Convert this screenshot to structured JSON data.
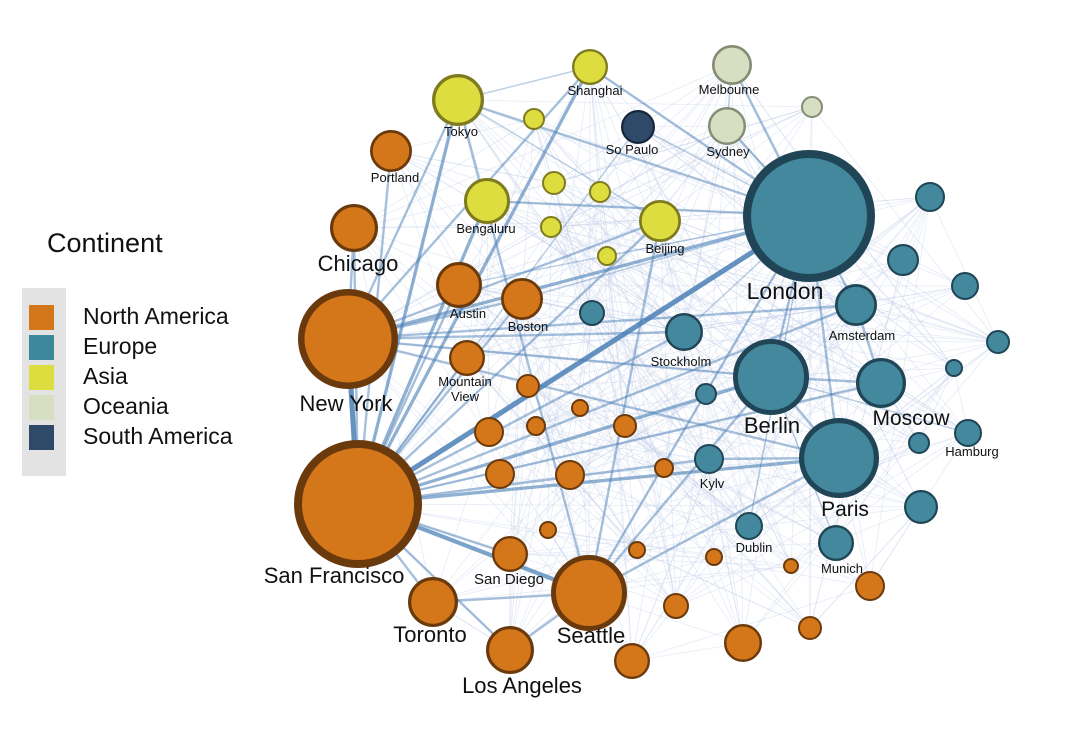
{
  "legend": {
    "title": "Continent",
    "items": [
      {
        "label": "North America",
        "color": "#d4761a"
      },
      {
        "label": "Europe",
        "color": "#3e889c"
      },
      {
        "label": "Asia",
        "color": "#dedd3f"
      },
      {
        "label": "Oceania",
        "color": "#d7dfc2"
      },
      {
        "label": "South America",
        "color": "#2f4a68"
      }
    ]
  },
  "styles": {
    "North America": {
      "fill": "#d4761a",
      "stroke": "#6b3a0c"
    },
    "Europe": {
      "fill": "#43889d",
      "stroke": "#1f4556"
    },
    "Asia": {
      "fill": "#dedd3f",
      "stroke": "#7e7b1e"
    },
    "Oceania": {
      "fill": "#d7dfc2",
      "stroke": "#858b75"
    },
    "South America": {
      "fill": "#2f4a68",
      "stroke": "#16263a"
    },
    "edge_color": "#4a7fb5"
  },
  "nodes": [
    {
      "id": "london",
      "label": "London",
      "continent": "Europe"
    },
    {
      "id": "berlin",
      "label": "Berlin",
      "continent": "Europe"
    },
    {
      "id": "paris",
      "label": "Paris",
      "continent": "Europe"
    },
    {
      "id": "moscow",
      "label": "Moscow",
      "continent": "Europe"
    },
    {
      "id": "amsterdam",
      "label": "Amsterdam",
      "continent": "Europe"
    },
    {
      "id": "stockholm",
      "label": "Stockholm",
      "continent": "Europe"
    },
    {
      "id": "hamburg",
      "label": "Hamburg",
      "continent": "Europe"
    },
    {
      "id": "kylv",
      "label": "Kylv",
      "continent": "Europe"
    },
    {
      "id": "dublin",
      "label": "Dublin",
      "continent": "Europe"
    },
    {
      "id": "munich",
      "label": "Munich",
      "continent": "Europe"
    },
    {
      "id": "eu1",
      "label": "",
      "continent": "Europe"
    },
    {
      "id": "eu2",
      "label": "",
      "continent": "Europe"
    },
    {
      "id": "eu3",
      "label": "",
      "continent": "Europe"
    },
    {
      "id": "eu4",
      "label": "",
      "continent": "Europe"
    },
    {
      "id": "eu5",
      "label": "",
      "continent": "Europe"
    },
    {
      "id": "eu6",
      "label": "",
      "continent": "Europe"
    },
    {
      "id": "eu7",
      "label": "",
      "continent": "Europe"
    },
    {
      "id": "eu8",
      "label": "",
      "continent": "Europe"
    },
    {
      "id": "tokyo",
      "label": "Tokyo",
      "continent": "Asia"
    },
    {
      "id": "shanghai",
      "label": "Shanghai",
      "continent": "Asia"
    },
    {
      "id": "bengaluru",
      "label": "Bengaluru",
      "continent": "Asia"
    },
    {
      "id": "beijing",
      "label": "Beijing",
      "continent": "Asia"
    },
    {
      "id": "as1",
      "label": "",
      "continent": "Asia"
    },
    {
      "id": "as2",
      "label": "",
      "continent": "Asia"
    },
    {
      "id": "as3",
      "label": "",
      "continent": "Asia"
    },
    {
      "id": "as4",
      "label": "",
      "continent": "Asia"
    },
    {
      "id": "as5",
      "label": "",
      "continent": "Asia"
    },
    {
      "id": "melbourne",
      "label": "Melboume",
      "continent": "Oceania"
    },
    {
      "id": "sydney",
      "label": "Sydney",
      "continent": "Oceania"
    },
    {
      "id": "oc1",
      "label": "",
      "continent": "Oceania"
    },
    {
      "id": "saopaulo",
      "label": "So Paulo",
      "continent": "South America"
    },
    {
      "id": "sanfrancisco",
      "label": "San Francisco",
      "continent": "North America"
    },
    {
      "id": "newyork",
      "label": "New York",
      "continent": "North America"
    },
    {
      "id": "seattle",
      "label": "Seattle",
      "continent": "North America"
    },
    {
      "id": "chicago",
      "label": "Chicago",
      "continent": "North America"
    },
    {
      "id": "portland",
      "label": "Portland",
      "continent": "North America"
    },
    {
      "id": "austin",
      "label": "Austin",
      "continent": "North America"
    },
    {
      "id": "boston",
      "label": "Boston",
      "continent": "North America"
    },
    {
      "id": "mountainview",
      "label": "Mountain View",
      "continent": "North America"
    },
    {
      "id": "sandiego",
      "label": "San Diego",
      "continent": "North America"
    },
    {
      "id": "toronto",
      "label": "Toronto",
      "continent": "North America"
    },
    {
      "id": "losangeles",
      "label": "Los Angeles",
      "continent": "North America"
    },
    {
      "id": "na1",
      "label": "",
      "continent": "North America"
    },
    {
      "id": "na2",
      "label": "",
      "continent": "North America"
    },
    {
      "id": "na3",
      "label": "",
      "continent": "North America"
    },
    {
      "id": "na4",
      "label": "",
      "continent": "North America"
    },
    {
      "id": "na5",
      "label": "",
      "continent": "North America"
    },
    {
      "id": "na6",
      "label": "",
      "continent": "North America"
    },
    {
      "id": "na7",
      "label": "",
      "continent": "North America"
    },
    {
      "id": "na8",
      "label": "",
      "continent": "North America"
    },
    {
      "id": "na9",
      "label": "",
      "continent": "North America"
    },
    {
      "id": "na10",
      "label": "",
      "continent": "North America"
    },
    {
      "id": "na11",
      "label": "",
      "continent": "North America"
    },
    {
      "id": "na12",
      "label": "",
      "continent": "North America"
    },
    {
      "id": "na13",
      "label": "",
      "continent": "North America"
    },
    {
      "id": "na14",
      "label": "",
      "continent": "North America"
    },
    {
      "id": "na15",
      "label": "",
      "continent": "North America"
    },
    {
      "id": "na16",
      "label": "",
      "continent": "North America"
    }
  ],
  "edges": [
    [
      "sanfrancisco",
      "london",
      5
    ],
    [
      "sanfrancisco",
      "newyork",
      5
    ],
    [
      "sanfrancisco",
      "seattle",
      4
    ],
    [
      "sanfrancisco",
      "berlin",
      3
    ],
    [
      "sanfrancisco",
      "paris",
      3
    ],
    [
      "sanfrancisco",
      "tokyo",
      3
    ],
    [
      "sanfrancisco",
      "bengaluru",
      3
    ],
    [
      "sanfrancisco",
      "shanghai",
      3
    ],
    [
      "sanfrancisco",
      "beijing",
      2
    ],
    [
      "sanfrancisco",
      "austin",
      2
    ],
    [
      "sanfrancisco",
      "boston",
      2
    ],
    [
      "sanfrancisco",
      "mountainview",
      2
    ],
    [
      "sanfrancisco",
      "chicago",
      2
    ],
    [
      "sanfrancisco",
      "portland",
      2
    ],
    [
      "sanfrancisco",
      "toronto",
      2
    ],
    [
      "sanfrancisco",
      "losangeles",
      2
    ],
    [
      "sanfrancisco",
      "sandiego",
      2
    ],
    [
      "sanfrancisco",
      "stockholm",
      2
    ],
    [
      "sanfrancisco",
      "moscow",
      2
    ],
    [
      "sanfrancisco",
      "amsterdam",
      2
    ],
    [
      "sanfrancisco",
      "kylv",
      2
    ],
    [
      "newyork",
      "london",
      3
    ],
    [
      "newyork",
      "berlin",
      2
    ],
    [
      "newyork",
      "paris",
      2
    ],
    [
      "newyork",
      "tokyo",
      2
    ],
    [
      "newyork",
      "shanghai",
      2
    ],
    [
      "newyork",
      "beijing",
      2
    ],
    [
      "newyork",
      "chicago",
      2
    ],
    [
      "newyork",
      "boston",
      2
    ],
    [
      "newyork",
      "amsterdam",
      2
    ],
    [
      "newyork",
      "stockholm",
      2
    ],
    [
      "london",
      "berlin",
      2
    ],
    [
      "london",
      "paris",
      2
    ],
    [
      "london",
      "seattle",
      2
    ],
    [
      "london",
      "tokyo",
      2
    ],
    [
      "london",
      "melbourne",
      2
    ],
    [
      "london",
      "sydney",
      2
    ],
    [
      "london",
      "amsterdam",
      2
    ],
    [
      "london",
      "bengaluru",
      2
    ],
    [
      "london",
      "shanghai",
      2
    ],
    [
      "berlin",
      "paris",
      2
    ],
    [
      "berlin",
      "moscow",
      2
    ],
    [
      "berlin",
      "seattle",
      2
    ],
    [
      "paris",
      "seattle",
      2
    ],
    [
      "paris",
      "kylv",
      2
    ],
    [
      "moscow",
      "amsterdam",
      2
    ],
    [
      "seattle",
      "toronto",
      2
    ],
    [
      "seattle",
      "losangeles",
      2
    ],
    [
      "seattle",
      "beijing",
      2
    ],
    [
      "seattle",
      "tokyo",
      2
    ],
    [
      "tokyo",
      "shanghai",
      1
    ],
    [
      "tokyo",
      "beijing",
      1
    ],
    [
      "melbourne",
      "sydney",
      1
    ],
    [
      "saopaulo",
      "london",
      1
    ],
    [
      "saopaulo",
      "sanfrancisco",
      1
    ],
    [
      "dublin",
      "london",
      1
    ],
    [
      "munich",
      "berlin",
      1
    ],
    [
      "hamburg",
      "berlin",
      1
    ],
    [
      "stockholm",
      "london",
      1
    ],
    [
      "austin",
      "london",
      1
    ],
    [
      "boston",
      "london",
      1
    ]
  ]
}
